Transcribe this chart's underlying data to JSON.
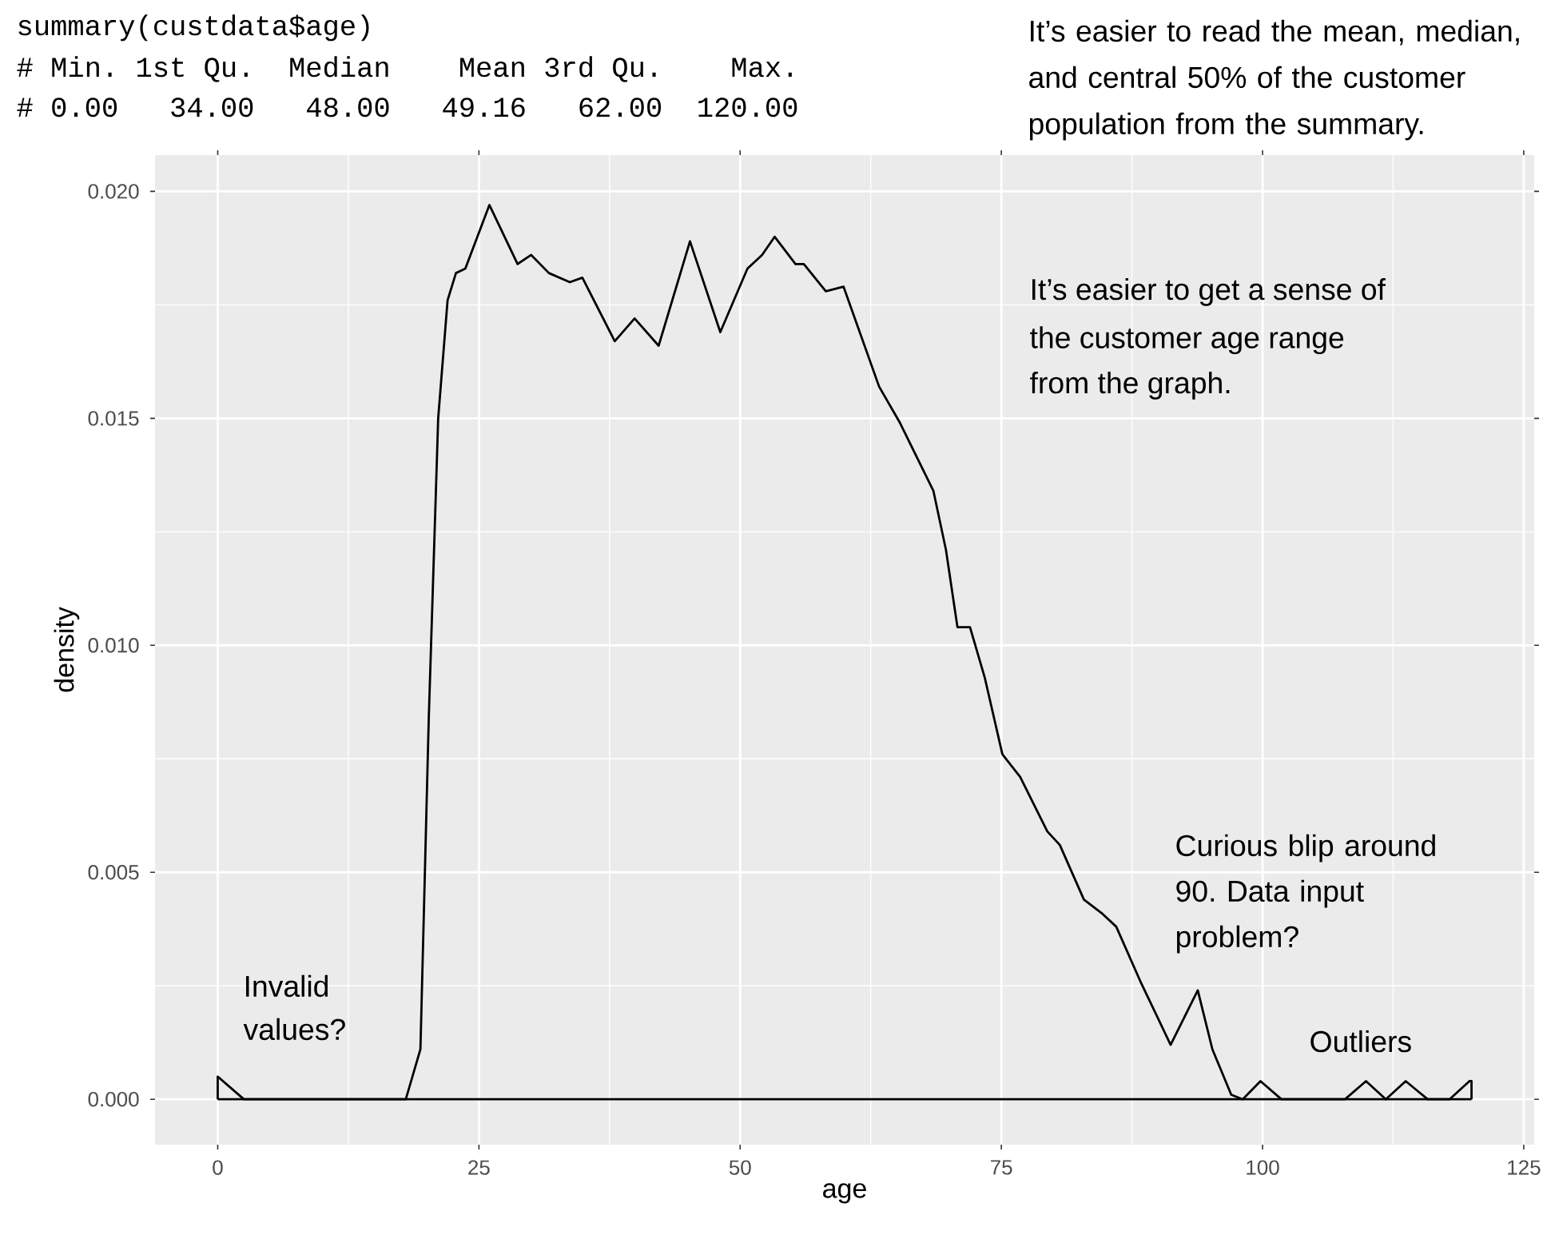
{
  "chart_data": {
    "type": "line",
    "xlabel": "age",
    "ylabel": "density",
    "xlim": [
      -6,
      126
    ],
    "ylim": [
      -0.001,
      0.0208
    ],
    "xticks": [
      0,
      25,
      50,
      75,
      100,
      125
    ],
    "yticks": [
      {
        "value": 0,
        "label": "0.000"
      },
      {
        "value": 0.005,
        "label": "0.005"
      },
      {
        "value": 0.01,
        "label": "0.010"
      },
      {
        "value": 0.015,
        "label": "0.015"
      },
      {
        "value": 0.02,
        "label": "0.020"
      }
    ],
    "grid": true,
    "series": [
      {
        "color": "#000000",
        "x": [
          0,
          0,
          1,
          2.5,
          18,
          19.4,
          20.2,
          21.1,
          22.0,
          22.8,
          23.7,
          26.0,
          28.7,
          30.0,
          31.7,
          33.7,
          34.9,
          38.0,
          39.9,
          42.2,
          45.2,
          48.1,
          50.7,
          52.1,
          53.3,
          55.3,
          56.1,
          58.2,
          59.9,
          63.3,
          65.3,
          68.5,
          69.7,
          70.8,
          72.0,
          73.4,
          75.1,
          76.8,
          79.4,
          80.6,
          82.9,
          84.6,
          86.0,
          88.3,
          91.2,
          93.8,
          95.2,
          97.0,
          98.1,
          99.8,
          101.8,
          107.9,
          109.9,
          111.8,
          113.7,
          115.8,
          117.9,
          119.8,
          120,
          120
        ],
        "values": [
          0,
          0.0005,
          0.0003,
          0,
          0,
          0.0011,
          0.0084,
          0.015,
          0.0176,
          0.0182,
          0.0183,
          0.0197,
          0.0184,
          0.0186,
          0.0182,
          0.018,
          0.0181,
          0.0167,
          0.0172,
          0.0166,
          0.0189,
          0.0169,
          0.0183,
          0.0186,
          0.019,
          0.0184,
          0.0184,
          0.0178,
          0.0179,
          0.0157,
          0.0149,
          0.0134,
          0.0121,
          0.0104,
          0.0104,
          0.0093,
          0.0076,
          0.0071,
          0.0059,
          0.0056,
          0.0044,
          0.0041,
          0.0038,
          0.0026,
          0.0012,
          0.0024,
          0.0011,
          0.0001,
          0,
          0.0004,
          0,
          0,
          0.0004,
          0,
          0.0004,
          0,
          0,
          0.0004,
          0.0004,
          0
        ]
      },
      {
        "color": "#000000",
        "x": [
          0,
          120
        ],
        "values": [
          0,
          0
        ]
      }
    ],
    "annotations": [
      "summary(custdata$age)",
      "# Min. 1st Qu.  Median    Mean 3rd Qu.    Max.",
      "# 0.00   34.00   48.00   49.16   62.00  120.00",
      "It’s easier to read the mean, median, and central 50% of the customer population from the summary.",
      "It’s easier to get a sense of",
      "the customer age range",
      "from the graph.",
      "Invalid values?",
      "Curious blip around 90. Data input problem?",
      "Outliers"
    ]
  }
}
